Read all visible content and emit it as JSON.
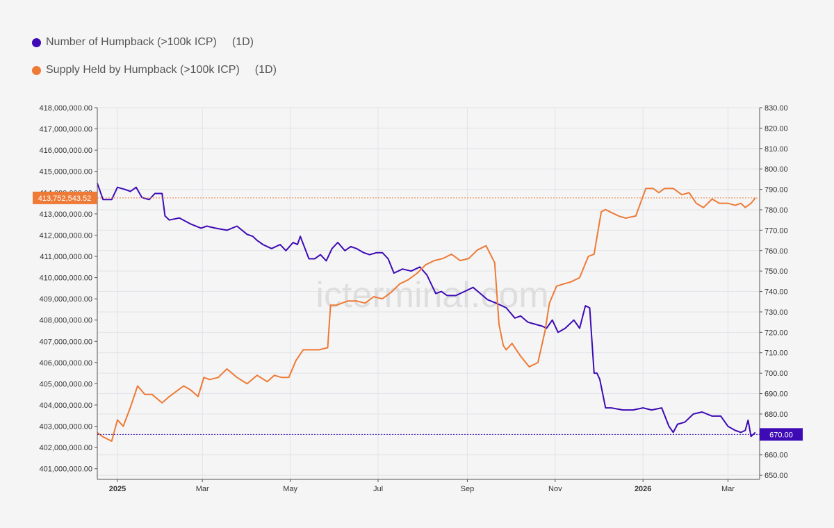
{
  "legend": [
    {
      "label": "Number of Humpback (>100k ICP)",
      "timeframe": "(1D)",
      "color": "#3d0ab5"
    },
    {
      "label": "Supply Held by Humpback (>100k ICP)",
      "timeframe": "(1D)",
      "color": "#ee7a36"
    }
  ],
  "watermark": "icterminal.com",
  "chart_data": {
    "type": "line",
    "x_ticks": [
      "2025",
      "Mar",
      "May",
      "Jul",
      "Sep",
      "Nov",
      "2026",
      "Mar"
    ],
    "x_range": [
      "2024-12-18",
      "2026-03-23"
    ],
    "left_axis": {
      "ylim": [
        400500000,
        418000000
      ],
      "ticks": [
        "401,000,000.00",
        "402,000,000.00",
        "403,000,000.00",
        "404,000,000.00",
        "405,000,000.00",
        "406,000,000.00",
        "407,000,000.00",
        "408,000,000.00",
        "409,000,000.00",
        "410,000,000.00",
        "411,000,000.00",
        "412,000,000.00",
        "413,000,000.00",
        "414,000,000.00",
        "415,000,000.00",
        "416,000,000.00",
        "417,000,000.00",
        "418,000,000.00"
      ],
      "current_value": 413752543.52,
      "current_label": "413,752,543.52"
    },
    "right_axis": {
      "ylim": [
        648,
        830
      ],
      "ticks": [
        "650.00",
        "660.00",
        "670.00",
        "680.00",
        "690.00",
        "700.00",
        "710.00",
        "720.00",
        "730.00",
        "740.00",
        "750.00",
        "760.00",
        "770.00",
        "780.00",
        "790.00",
        "800.00",
        "810.00",
        "820.00",
        "830.00"
      ],
      "current_value": 670,
      "current_label": "670.00"
    },
    "grid": true,
    "series": [
      {
        "name": "Number of Humpback (>100k ICP)",
        "axis": "right",
        "color": "#3d0ab5",
        "x": [
          "2024-12-18",
          "2024-12-22",
          "2024-12-28",
          "2025-01-01",
          "2025-01-06",
          "2025-01-10",
          "2025-01-14",
          "2025-01-18",
          "2025-01-23",
          "2025-01-27",
          "2025-02-01",
          "2025-02-03",
          "2025-02-06",
          "2025-02-13",
          "2025-02-21",
          "2025-02-28",
          "2025-03-04",
          "2025-03-10",
          "2025-03-18",
          "2025-03-25",
          "2025-04-01",
          "2025-04-05",
          "2025-04-08",
          "2025-04-12",
          "2025-04-18",
          "2025-04-24",
          "2025-04-28",
          "2025-05-03",
          "2025-05-06",
          "2025-05-08",
          "2025-05-14",
          "2025-05-18",
          "2025-05-22",
          "2025-05-26",
          "2025-05-30",
          "2025-06-03",
          "2025-06-08",
          "2025-06-12",
          "2025-06-16",
          "2025-06-21",
          "2025-06-25",
          "2025-06-30",
          "2025-07-04",
          "2025-07-08",
          "2025-07-12",
          "2025-07-18",
          "2025-07-24",
          "2025-07-30",
          "2025-08-04",
          "2025-08-10",
          "2025-08-14",
          "2025-08-18",
          "2025-08-24",
          "2025-08-30",
          "2025-09-05",
          "2025-09-10",
          "2025-09-15",
          "2025-09-22",
          "2025-09-28",
          "2025-10-04",
          "2025-10-08",
          "2025-10-13",
          "2025-10-18",
          "2025-10-23",
          "2025-10-26",
          "2025-10-30",
          "2025-11-03",
          "2025-11-08",
          "2025-11-14",
          "2025-11-18",
          "2025-11-22",
          "2025-11-25",
          "2025-11-28",
          "2025-11-30",
          "2025-12-02",
          "2025-12-06",
          "2025-12-10",
          "2025-12-18",
          "2025-12-25",
          "2026-01-01",
          "2026-01-07",
          "2026-01-14",
          "2026-01-19",
          "2026-01-22",
          "2026-01-25",
          "2026-01-30",
          "2026-02-05",
          "2026-02-11",
          "2026-02-18",
          "2026-02-24",
          "2026-03-01",
          "2026-03-06",
          "2026-03-10",
          "2026-03-13",
          "2026-03-15",
          "2026-03-17",
          "2026-03-20"
        ],
        "values": [
          793,
          785,
          785,
          791,
          790,
          789,
          791,
          786,
          785,
          788,
          788,
          777,
          775,
          776,
          773,
          771,
          772,
          771,
          770,
          772,
          768,
          767,
          765,
          763,
          761,
          763,
          760,
          764,
          763,
          767,
          756,
          756,
          758,
          755,
          761,
          764,
          760,
          762,
          761,
          759,
          758,
          759,
          759,
          756,
          749,
          751,
          750,
          752,
          748,
          739,
          740,
          738,
          738,
          740,
          742,
          739,
          736,
          734,
          732,
          727,
          728,
          725,
          724,
          723,
          722,
          726,
          720,
          722,
          726,
          722,
          733,
          732,
          700,
          700,
          697,
          683,
          683,
          682,
          682,
          683,
          682,
          683,
          674,
          671,
          675,
          676,
          680,
          681,
          679,
          679,
          674,
          672,
          671,
          672,
          677,
          669,
          671
        ]
      },
      {
        "name": "Supply Held by Humpback (>100k ICP)",
        "axis": "left",
        "color": "#ee7a36",
        "x": [
          "2024-12-18",
          "2024-12-22",
          "2024-12-28",
          "2025-01-01",
          "2025-01-05",
          "2025-01-10",
          "2025-01-15",
          "2025-01-20",
          "2025-01-25",
          "2025-02-01",
          "2025-02-06",
          "2025-02-10",
          "2025-02-16",
          "2025-02-21",
          "2025-02-26",
          "2025-03-02",
          "2025-03-06",
          "2025-03-12",
          "2025-03-18",
          "2025-03-25",
          "2025-04-01",
          "2025-04-08",
          "2025-04-15",
          "2025-04-20",
          "2025-04-25",
          "2025-04-30",
          "2025-05-05",
          "2025-05-10",
          "2025-05-15",
          "2025-05-21",
          "2025-05-27",
          "2025-05-29",
          "2025-06-02",
          "2025-06-10",
          "2025-06-16",
          "2025-06-22",
          "2025-06-28",
          "2025-07-04",
          "2025-07-10",
          "2025-07-16",
          "2025-07-22",
          "2025-07-28",
          "2025-08-03",
          "2025-08-09",
          "2025-08-15",
          "2025-08-21",
          "2025-08-27",
          "2025-09-02",
          "2025-09-08",
          "2025-09-14",
          "2025-09-20",
          "2025-09-23",
          "2025-09-26",
          "2025-09-28",
          "2025-10-02",
          "2025-10-08",
          "2025-10-14",
          "2025-10-20",
          "2025-10-25",
          "2025-10-28",
          "2025-11-02",
          "2025-11-07",
          "2025-11-12",
          "2025-11-18",
          "2025-11-24",
          "2025-11-28",
          "2025-12-03",
          "2025-12-06",
          "2025-12-09",
          "2025-12-15",
          "2025-12-20",
          "2025-12-27",
          "2026-01-03",
          "2026-01-08",
          "2026-01-12",
          "2026-01-16",
          "2026-01-22",
          "2026-01-28",
          "2026-02-02",
          "2026-02-07",
          "2026-02-12",
          "2026-02-18",
          "2026-02-23",
          "2026-03-01",
          "2026-03-06",
          "2026-03-10",
          "2026-03-13",
          "2026-03-17",
          "2026-03-20"
        ],
        "values": [
          402700000,
          402500000,
          402300000,
          403300000,
          403000000,
          403900000,
          404900000,
          404500000,
          404500000,
          404100000,
          404400000,
          404600000,
          404900000,
          404700000,
          404400000,
          405300000,
          405200000,
          405300000,
          405700000,
          405300000,
          405000000,
          405400000,
          405100000,
          405400000,
          405300000,
          405300000,
          406100000,
          406600000,
          406600000,
          406600000,
          406700000,
          408700000,
          408700000,
          408900000,
          408900000,
          408800000,
          409100000,
          409000000,
          409300000,
          409700000,
          409900000,
          410200000,
          410600000,
          410800000,
          410900000,
          411100000,
          410800000,
          410900000,
          411300000,
          411500000,
          410700000,
          407800000,
          406800000,
          406600000,
          406900000,
          406300000,
          405800000,
          406000000,
          407500000,
          408800000,
          409600000,
          409700000,
          409800000,
          410000000,
          411000000,
          411100000,
          413100000,
          413200000,
          413100000,
          412900000,
          412800000,
          412900000,
          414200000,
          414200000,
          414000000,
          414200000,
          414200000,
          413900000,
          414000000,
          413500000,
          413300000,
          413700000,
          413500000,
          413500000,
          413400000,
          413500000,
          413300000,
          413500000,
          413750000
        ]
      }
    ]
  }
}
